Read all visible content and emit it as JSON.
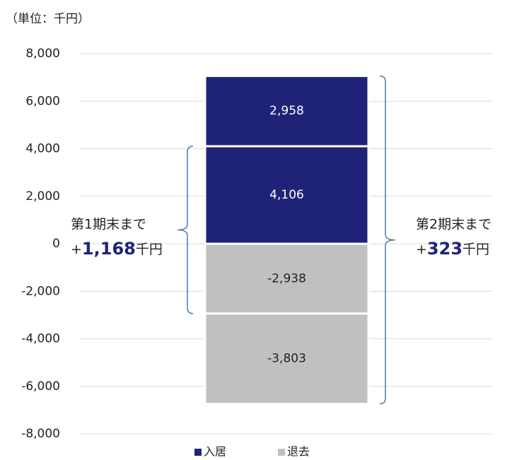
{
  "chart_data": {
    "type": "stacked_bar",
    "unit_label": "（単位：千円）",
    "series": [
      {
        "name": "入居",
        "color": "#1f2378",
        "values": [
          4106,
          2958
        ],
        "value_labels": [
          "4,106",
          "2,958"
        ],
        "label_color": "#ffffff"
      },
      {
        "name": "退去",
        "color": "#c0c0c0",
        "values": [
          -2938,
          -3803
        ],
        "value_labels": [
          "-2,938",
          "-3,803"
        ],
        "label_color": "#222222"
      }
    ],
    "ylim": [
      -8000,
      8000
    ],
    "yticks": [
      {
        "value": -8000,
        "label": "-8,000"
      },
      {
        "value": -6000,
        "label": "-6,000"
      },
      {
        "value": -4000,
        "label": "-4,000"
      },
      {
        "value": -2000,
        "label": "-2,000"
      },
      0,
      {
        "value": 2000,
        "label": "2,000"
      },
      {
        "value": 4000,
        "label": "4,000"
      },
      {
        "value": 6000,
        "label": "6,000"
      },
      {
        "value": 8000,
        "label": "8,000"
      }
    ],
    "grid": true,
    "annotations": [
      {
        "title": "第1期末まで",
        "sign": "+",
        "amount": "1,168",
        "unit": "千円"
      },
      {
        "title": "第2期末まで",
        "sign": "+",
        "amount": "323",
        "unit": "千円"
      }
    ],
    "highlight_color": "#1f2378",
    "bracket_color": "#4a7ab5"
  }
}
